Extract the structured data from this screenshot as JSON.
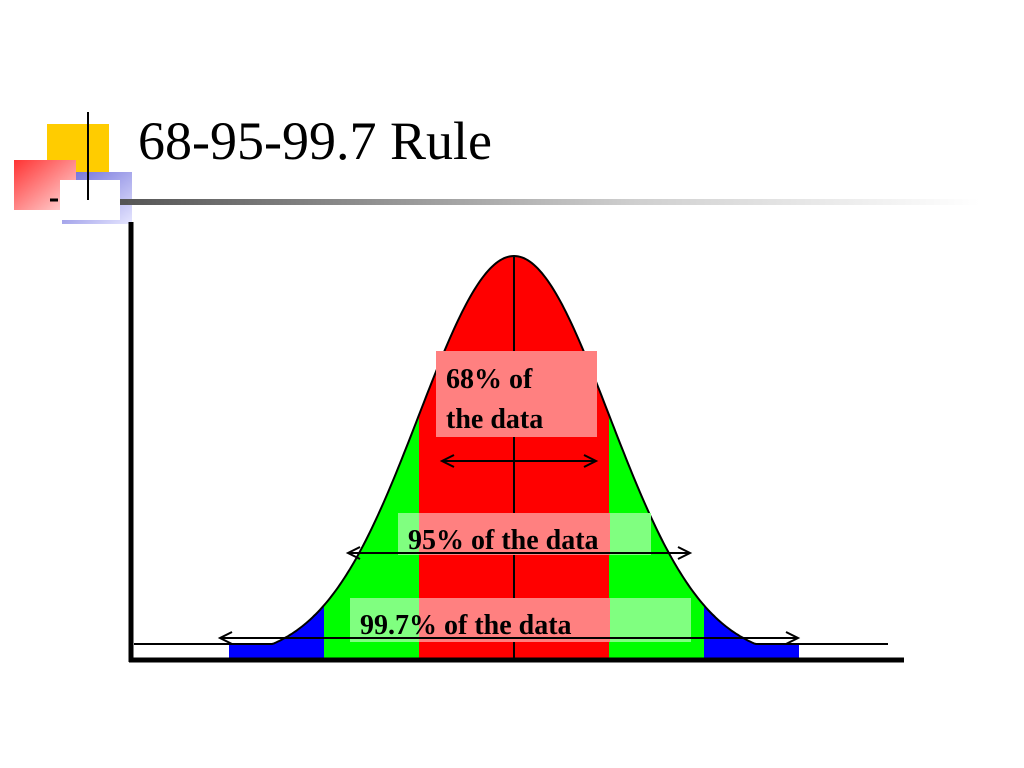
{
  "title": "68-95-99.7 Rule",
  "colors": {
    "band_68": "#ff0000",
    "band_95": "#00ff00",
    "band_997": "#0000ff",
    "label_bg": "#ff8080",
    "label_bg_green": "#80ff80",
    "axis": "#000000",
    "title_rule": "#7a7a7a",
    "accent_yellow": "#ffcc00",
    "accent_red": "#ff3333",
    "accent_blue": "#6a6ad8"
  },
  "diagram": {
    "type": "normal-distribution-empirical-rule",
    "bands": [
      {
        "name": "68",
        "sigma": 1
      },
      {
        "name": "95",
        "sigma": 2
      },
      {
        "name": "99.7",
        "sigma": 3
      }
    ],
    "labels": {
      "label_68_line1": "68% of",
      "label_68_line2": "the data",
      "label_95": "95% of the data",
      "label_997": "99.7% of the data"
    }
  }
}
